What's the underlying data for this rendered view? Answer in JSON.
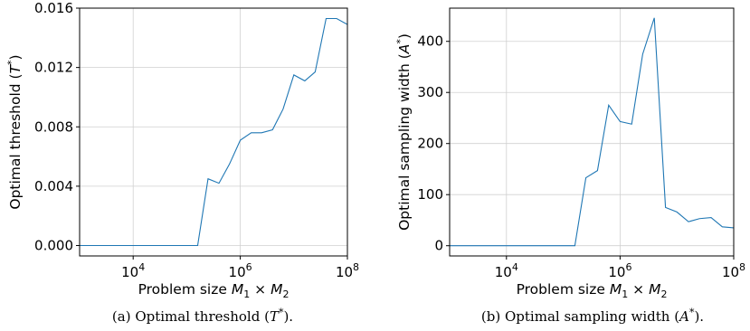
{
  "series_color": "#1f77b4",
  "chart_data": [
    {
      "type": "line",
      "x_scale": "log",
      "xlim": [
        1000,
        100000000
      ],
      "ylim": [
        -0.0007,
        0.016
      ],
      "grid": true,
      "xticks": [
        {
          "value": 10000,
          "base": "10",
          "exp": "4"
        },
        {
          "value": 1000000,
          "base": "10",
          "exp": "6"
        },
        {
          "value": 100000000,
          "base": "10",
          "exp": "8"
        }
      ],
      "yticks": [
        {
          "value": 0,
          "label": "0.000"
        },
        {
          "value": 0.004,
          "label": "0.004"
        },
        {
          "value": 0.008,
          "label": "0.008"
        },
        {
          "value": 0.012,
          "label": "0.012"
        },
        {
          "value": 0.016,
          "label": "0.016"
        }
      ],
      "xlabel": {
        "prefix": "Problem size ",
        "m1": "M",
        "sub1": "1",
        "times": " × ",
        "m2": "M",
        "sub2": "2"
      },
      "ylabel": {
        "prefix": "Optimal threshold (",
        "var": "T",
        "sup": "*",
        "suffix": ")"
      },
      "caption": {
        "prefix": "(a) Optimal threshold (",
        "var": "T",
        "sup": "*",
        "suffix": ")."
      },
      "x": [
        1000,
        1600,
        2500,
        4000,
        6300,
        10000,
        16000,
        25000,
        40000,
        63000,
        100000,
        160000,
        250000,
        400000,
        630000,
        1000000,
        1600000,
        2500000,
        4000000,
        6300000,
        10000000,
        16000000,
        25000000,
        40000000,
        63000000,
        100000000
      ],
      "y": [
        0,
        0,
        0,
        0,
        0,
        0,
        0,
        0,
        0,
        0,
        0,
        0,
        0.0045,
        0.0042,
        0.0055,
        0.0071,
        0.0076,
        0.0076,
        0.0078,
        0.0092,
        0.0115,
        0.0111,
        0.0117,
        0.0153,
        0.0153,
        0.0149
      ]
    },
    {
      "type": "line",
      "x_scale": "log",
      "xlim": [
        1000,
        100000000
      ],
      "ylim": [
        -20,
        465
      ],
      "grid": true,
      "xticks": [
        {
          "value": 10000,
          "base": "10",
          "exp": "4"
        },
        {
          "value": 1000000,
          "base": "10",
          "exp": "6"
        },
        {
          "value": 100000000,
          "base": "10",
          "exp": "8"
        }
      ],
      "yticks": [
        {
          "value": 0,
          "label": "0"
        },
        {
          "value": 100,
          "label": "100"
        },
        {
          "value": 200,
          "label": "200"
        },
        {
          "value": 300,
          "label": "300"
        },
        {
          "value": 400,
          "label": "400"
        }
      ],
      "xlabel": {
        "prefix": "Problem size ",
        "m1": "M",
        "sub1": "1",
        "times": " × ",
        "m2": "M",
        "sub2": "2"
      },
      "ylabel": {
        "prefix": "Optimal sampling width (",
        "var": "A",
        "sup": "*",
        "suffix": ")"
      },
      "caption": {
        "prefix": "(b) Optimal sampling width (",
        "var": "A",
        "sup": "*",
        "suffix": ")."
      },
      "x": [
        1000,
        1600,
        2500,
        4000,
        6300,
        10000,
        16000,
        25000,
        40000,
        63000,
        100000,
        160000,
        250000,
        400000,
        630000,
        1000000,
        1600000,
        2500000,
        4000000,
        6300000,
        10000000,
        16000000,
        25000000,
        40000000,
        63000000,
        100000000
      ],
      "y": [
        0,
        0,
        0,
        0,
        0,
        0,
        0,
        0,
        0,
        0,
        0,
        0,
        133,
        147,
        275,
        243,
        238,
        375,
        446,
        75,
        66,
        47,
        53,
        55,
        37,
        35
      ]
    }
  ]
}
